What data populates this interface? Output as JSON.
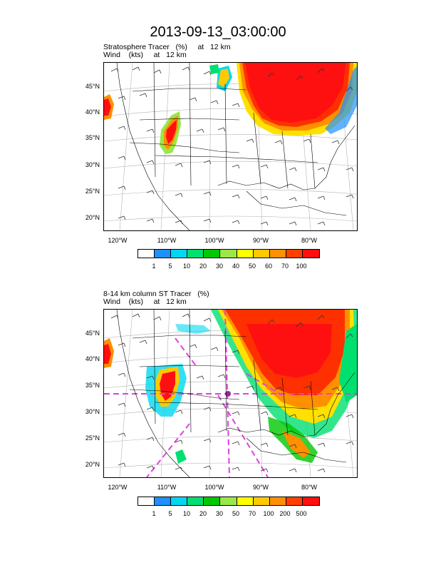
{
  "title": "2013-09-13_03:00:00",
  "panel1": {
    "line1": "Stratosphere Tracer   (%)     at   12 km",
    "line2": "Wind    (kts)     at   12 km",
    "lat_labels": [
      "45°N",
      "40°N",
      "35°N",
      "30°N",
      "25°N",
      "20°N"
    ],
    "lon_labels": [
      "120°W",
      "110°W",
      "100°W",
      "90°W",
      "80°W"
    ],
    "colorbar_labels": [
      "1",
      "5",
      "10",
      "20",
      "30",
      "40",
      "50",
      "60",
      "70",
      "100"
    ]
  },
  "panel2": {
    "line1": "8-14 km column ST Tracer   (%)",
    "line2": "Wind    (kts)     at   12 km",
    "lat_labels": [
      "45°N",
      "40°N",
      "35°N",
      "30°N",
      "25°N",
      "20°N"
    ],
    "lon_labels": [
      "120°W",
      "110°W",
      "100°W",
      "90°W",
      "80°W"
    ],
    "colorbar_labels": [
      "1",
      "5",
      "10",
      "20",
      "30",
      "50",
      "70",
      "100",
      "200",
      "500"
    ]
  },
  "colorbar_colors": [
    "#ffffff",
    "#1e90ff",
    "#00d8f0",
    "#00e070",
    "#00c800",
    "#98e848",
    "#ffff00",
    "#ffc800",
    "#ff9000",
    "#ff4000",
    "#ff1010"
  ],
  "colors": {
    "outline": "#000000",
    "grid": "#b4b4b4",
    "trace": "#e040e0"
  }
}
